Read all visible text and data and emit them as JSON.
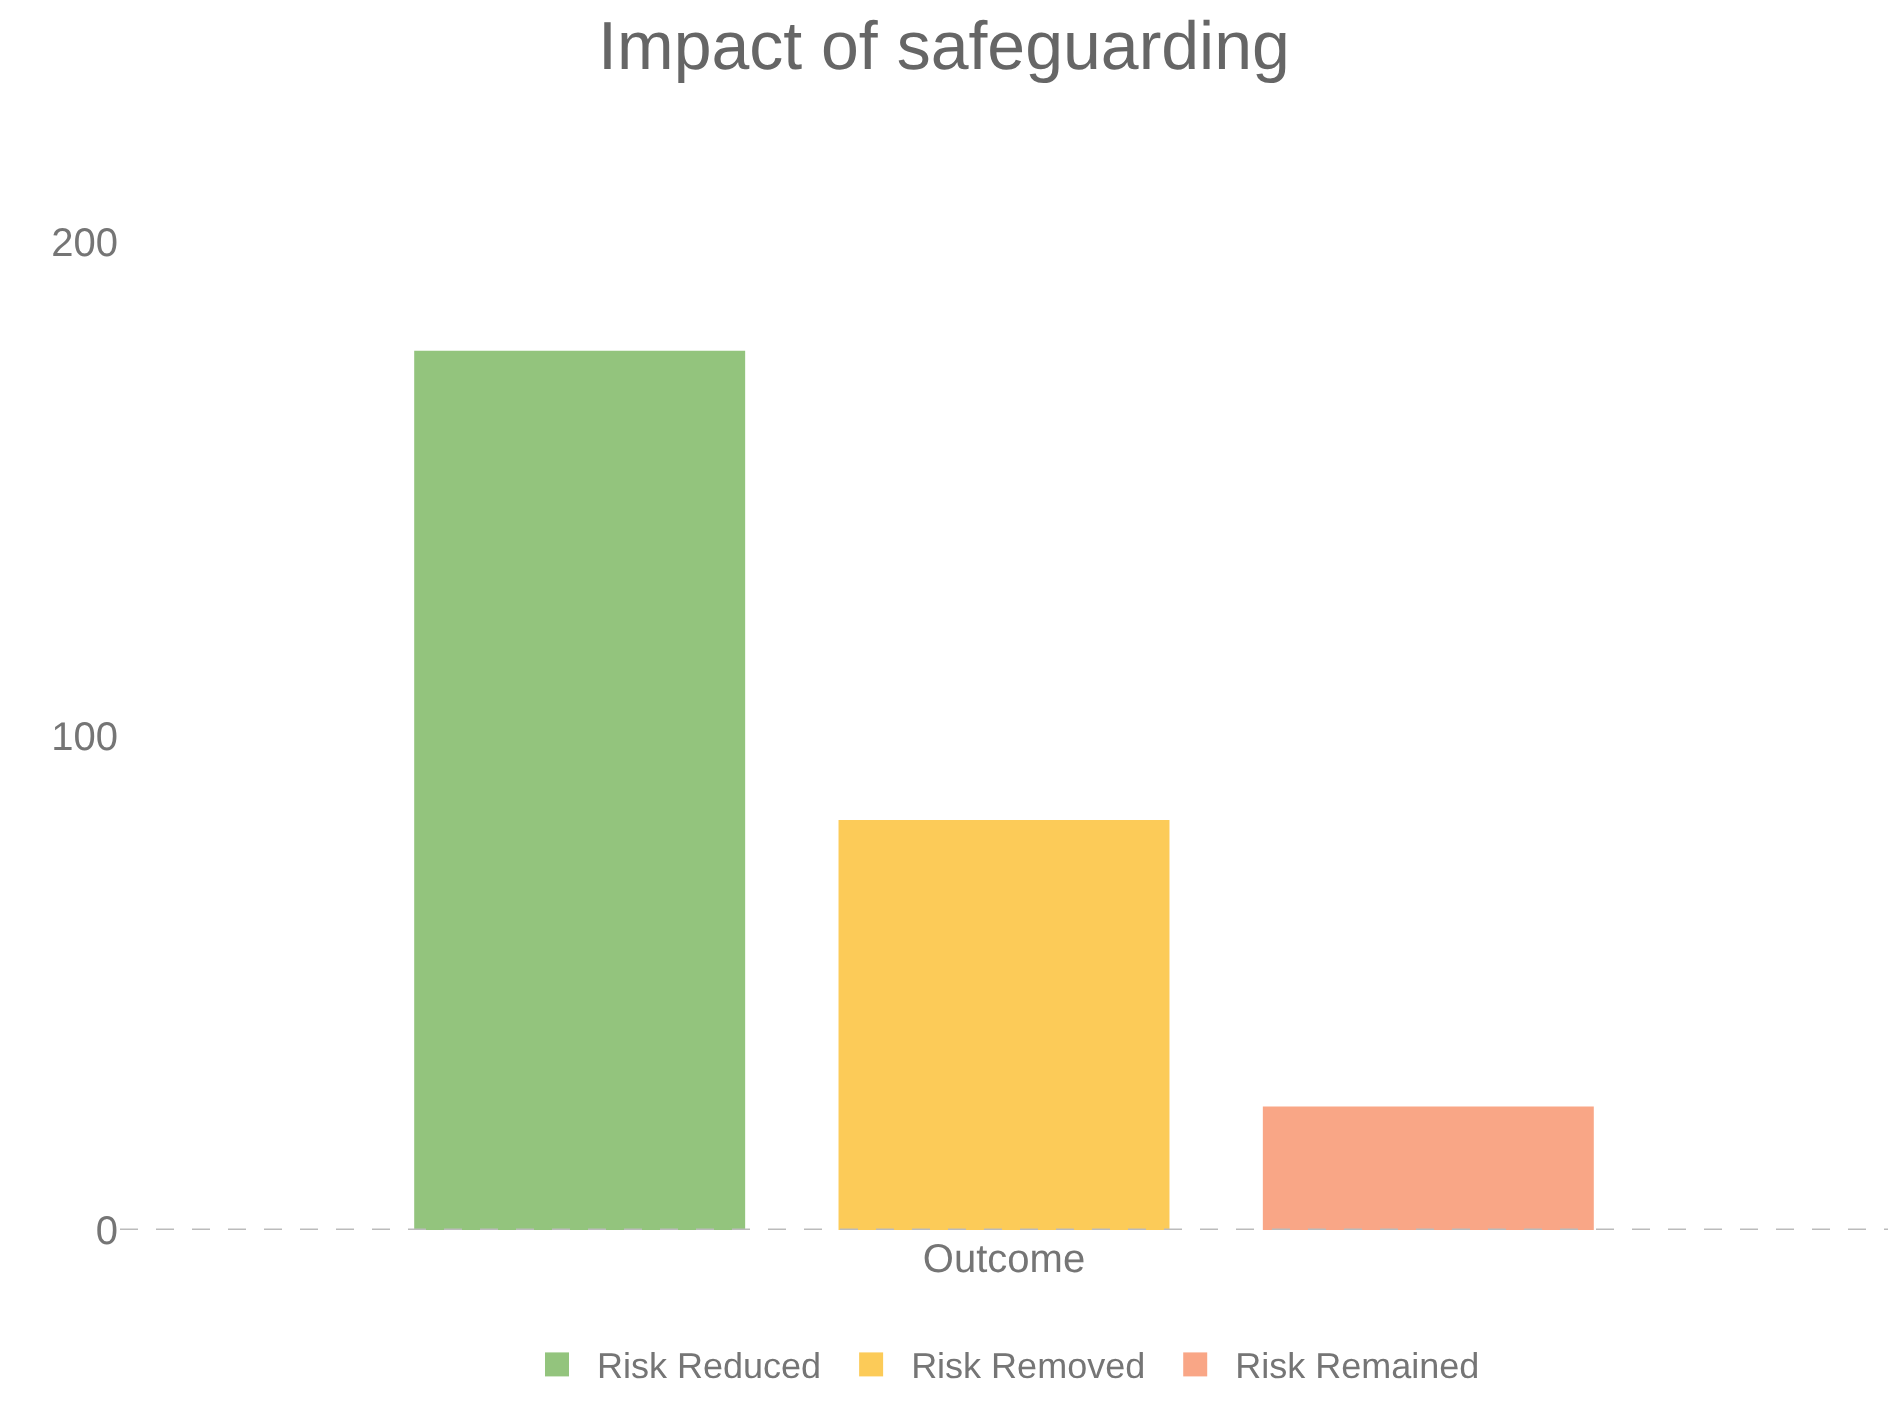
{
  "chart_data": {
    "type": "bar",
    "title": "Impact of safeguarding",
    "categories": [
      "Outcome"
    ],
    "series": [
      {
        "name": "Risk Reduced",
        "color": "#93c47d",
        "values": [
          178
        ]
      },
      {
        "name": "Risk Removed",
        "color": "#fccb58",
        "values": [
          83
        ]
      },
      {
        "name": "Risk Remained",
        "color": "#f9a686",
        "values": [
          25
        ]
      }
    ],
    "ylim": [
      0,
      200
    ],
    "yticks": [
      0,
      100,
      200
    ],
    "legend": "bottom",
    "ref_lines": [
      {
        "axis": "y",
        "value": 0,
        "label": null,
        "color": "#bbbbbb",
        "line_style": "dashed"
      }
    ]
  }
}
